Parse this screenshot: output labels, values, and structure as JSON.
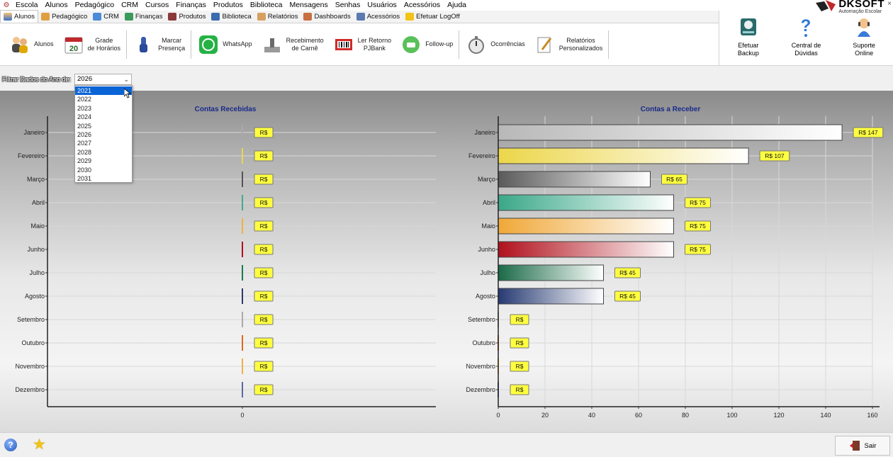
{
  "menubar": {
    "items": [
      "Escola",
      "Alunos",
      "Pedagógico",
      "CRM",
      "Cursos",
      "Finanças",
      "Produtos",
      "Biblioteca",
      "Mensagens",
      "Senhas",
      "Usuários",
      "Acessórios",
      "Ajuda"
    ]
  },
  "brand": {
    "name": "DKSOFT",
    "subtitle": "Automação Escolar",
    "close": "×"
  },
  "tabs": [
    "Alunos",
    "Pedagógico",
    "CRM",
    "Finanças",
    "Produtos",
    "Biblioteca",
    "Relatórios",
    "Dashboards",
    "Acessórios",
    "Efetuar LogOff"
  ],
  "toolbar": {
    "alunos": "Alunos",
    "grade": "Grade\nde Horários",
    "grade_icon_text": "20",
    "presenca": "Marcar\nPresença",
    "whatsapp": "WhatsApp",
    "carne": "Recebimento\nde Carnê",
    "pjbank": "Ler Retorno\nPJBank",
    "followup": "Follow-up",
    "ocorrencias": "Ocorrências",
    "relatorios": "Relatórios\nPersonalizados"
  },
  "rightpanel": {
    "backup": "Efetuar\nBackup",
    "duvidas": "Central de\nDúvidas",
    "suporte": "Suporte\nOnline"
  },
  "filter": {
    "label": "Filtrar Dados do Ano de:",
    "selected_year": "2026",
    "options": [
      "2021",
      "2022",
      "2023",
      "2024",
      "2025",
      "2026",
      "2027",
      "2028",
      "2029",
      "2030",
      "2031"
    ],
    "highlighted": "2021"
  },
  "status": {
    "exit": "Sair"
  },
  "chart_data": [
    {
      "type": "bar",
      "orientation": "horizontal",
      "title": "Contas Recebidas",
      "categories": [
        "Janeiro",
        "Fevereiro",
        "Março",
        "Abril",
        "Maio",
        "Junho",
        "Julho",
        "Agosto",
        "Setembro",
        "Outubro",
        "Novembro",
        "Dezembro"
      ],
      "values": [
        0,
        0,
        0,
        0,
        0,
        0,
        0,
        0,
        0,
        0,
        0,
        0
      ],
      "labels": [
        "R$",
        "R$",
        "R$",
        "R$",
        "R$",
        "R$",
        "R$",
        "R$",
        "R$",
        "R$",
        "R$",
        "R$"
      ],
      "x_ticks": [
        "0"
      ],
      "colors": [
        "#aaaaaa",
        "#e8d84a",
        "#555555",
        "#44aa88",
        "#f0b040",
        "#b01020",
        "#1a7a50",
        "#2a3a70",
        "#aaaaaa",
        "#e06a20",
        "#f0b040",
        "#5a6aa0"
      ]
    },
    {
      "type": "bar",
      "orientation": "horizontal",
      "title": "Contas a Receber",
      "categories": [
        "Janeiro",
        "Fevereiro",
        "Março",
        "Abril",
        "Maio",
        "Junho",
        "Julho",
        "Agosto",
        "Setembro",
        "Outubro",
        "Novembro",
        "Dezembro"
      ],
      "values": [
        147,
        107,
        65,
        75,
        75,
        75,
        45,
        45,
        0,
        0,
        0,
        0
      ],
      "labels": [
        "R$ 147",
        "R$ 107",
        "R$ 65",
        "R$ 75",
        "R$ 75",
        "R$ 75",
        "R$ 45",
        "R$ 45",
        "R$",
        "R$",
        "R$",
        "R$"
      ],
      "xlim": [
        0,
        160
      ],
      "x_ticks": [
        "0",
        "20",
        "40",
        "60",
        "80",
        "100",
        "120",
        "140",
        "160"
      ],
      "colors": [
        "#b8b8b8",
        "#ecd64a",
        "#5a5a5a",
        "#3aa888",
        "#f0a838",
        "#b0101c",
        "#1a6a48",
        "#263a72",
        "#aaaaaa",
        "#e06a20",
        "#f0b040",
        "#5a6aa0"
      ]
    }
  ]
}
